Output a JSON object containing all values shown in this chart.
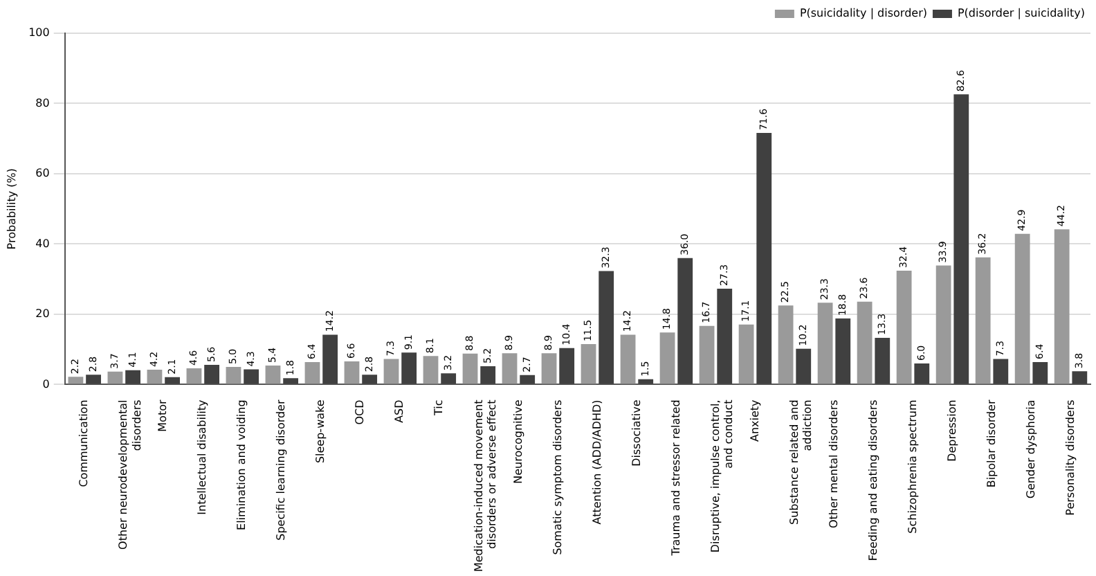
{
  "chart_data": {
    "type": "bar",
    "ylabel": "Probability (%)",
    "categories": [
      "Communication",
      "Other neurodevelopmental disorders",
      "Motor",
      "Intellectual disability",
      "Elimination and voiding",
      "Specific learning disorder",
      "Sleep-wake",
      "OCD",
      "ASD",
      "Tic",
      "Medication-induced movement disorders or adverse effect",
      "Neurocognitive",
      "Somatic symptom disorders",
      "Attention (ADD/ADHD)",
      "Dissociative",
      "Trauma and stressor related",
      "Disruptive, impulse control, and conduct",
      "Anxiety",
      "Substance related and addiction",
      "Other mental disorders",
      "Feeding and eating disorders",
      "Schizophrenia spectrum",
      "Depression",
      "Bipolar disorder",
      "Gender dysphoria",
      "Personality disorders"
    ],
    "series": [
      {
        "name": "P(suicidality | disorder)",
        "color": "#9a9a9a",
        "values": [
          2.2,
          3.7,
          4.2,
          4.6,
          5.0,
          5.4,
          6.4,
          6.6,
          7.3,
          8.1,
          8.8,
          8.9,
          8.9,
          11.5,
          14.2,
          14.8,
          16.7,
          17.1,
          22.5,
          23.3,
          23.6,
          32.4,
          33.9,
          36.2,
          42.9,
          44.2
        ],
        "value_labels": [
          "2.2",
          "3.7",
          "4.2",
          "4.6",
          "5.0",
          "5.4",
          "6.4",
          "6.6",
          "7.3",
          "8.1",
          "8.8",
          "8.9",
          "8.9",
          "11.5",
          "14.2",
          "14.8",
          "16.7",
          "17.1",
          "22.5",
          "23.3",
          "23.6",
          "32.4",
          "33.9",
          "36.2",
          "42.9",
          "44.2"
        ]
      },
      {
        "name": "P(disorder | suicidality)",
        "color": "#404040",
        "values": [
          2.8,
          4.1,
          2.1,
          5.6,
          4.3,
          1.8,
          14.2,
          2.8,
          9.1,
          3.2,
          5.2,
          2.7,
          10.4,
          32.3,
          1.5,
          36.0,
          27.3,
          71.6,
          10.2,
          18.8,
          13.3,
          6.0,
          82.6,
          7.3,
          6.4,
          3.8
        ],
        "value_labels": [
          "2.8",
          "4.1",
          "2.1",
          "5.6",
          "4.3",
          "1.8",
          "14.2",
          "2.8",
          "9.1",
          "3.2",
          "5.2",
          "2.7",
          "10.4",
          "32.3",
          "1.5",
          "36.0",
          "27.3",
          "71.6",
          "10.2",
          "18.8",
          "13.3",
          "6.0",
          "82.6",
          "7.3",
          "6.4",
          "3.8"
        ]
      }
    ],
    "ylim": [
      0,
      100
    ],
    "yticks": [
      0,
      20,
      40,
      60,
      80,
      100
    ],
    "grid": "y",
    "legend": "top right"
  }
}
